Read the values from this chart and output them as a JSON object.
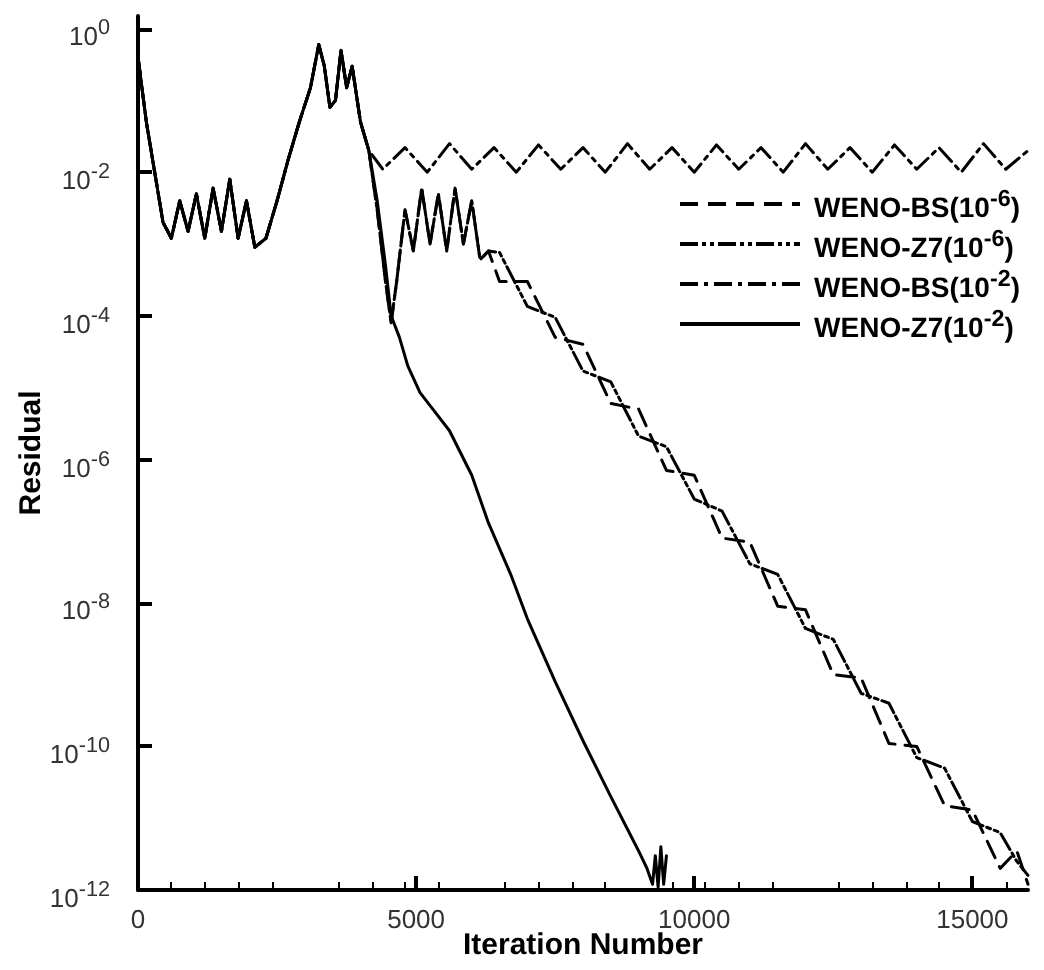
{
  "chart_data": {
    "type": "line",
    "xlabel": "Iteration Number",
    "ylabel": "Residual",
    "log": "y",
    "grid": false,
    "marker": "none",
    "legend": "right",
    "xlim": [
      0,
      16000
    ],
    "xticks": [
      0,
      5000,
      10000,
      15000
    ],
    "ylim": [
      1e-12,
      1.5
    ],
    "yticks": [
      {
        "value": 1,
        "label": "10$^{0}$"
      },
      {
        "value": 0.01,
        "label": "10$^{-2}$"
      },
      {
        "value": 0.0001,
        "label": "10$^{-4}$"
      },
      {
        "value": 1e-06,
        "label": "10$^{-6}$"
      },
      {
        "value": 1e-08,
        "label": "10$^{-8}$"
      },
      {
        "value": 1e-10,
        "label": "10$^{-10}$"
      },
      {
        "value": 1e-12,
        "label": "10$^{-12}$"
      }
    ],
    "series": [
      {
        "name": "WENO-BS(10$^{-6}$)",
        "color": "#000000",
        "line_style": "dashed",
        "x": [
          0,
          150,
          300,
          450,
          600,
          750,
          900,
          1050,
          1200,
          1350,
          1500,
          1650,
          1800,
          1950,
          2100,
          2300,
          2500,
          2700,
          2900,
          3100,
          3250,
          3350,
          3450,
          3550,
          3650,
          3750,
          3850,
          4000,
          4150,
          4300,
          4450,
          4550,
          4650,
          4800,
          4950,
          5100,
          5250,
          5400,
          5550,
          5700,
          5850,
          6000,
          6150,
          6300,
          6500,
          7000,
          7500,
          8000,
          8500,
          9000,
          9500,
          10000,
          10500,
          11000,
          11500,
          12000,
          12500,
          13000,
          13500,
          14000,
          14500,
          15000,
          15500,
          15800,
          16000
        ],
        "values": [
          0.4,
          0.05,
          0.01,
          0.002,
          0.0012,
          0.004,
          0.0015,
          0.005,
          0.0012,
          0.006,
          0.0015,
          0.008,
          0.0012,
          0.004,
          0.0009,
          0.0012,
          0.004,
          0.015,
          0.05,
          0.15,
          0.6,
          0.3,
          0.08,
          0.1,
          0.5,
          0.15,
          0.3,
          0.05,
          0.02,
          0.003,
          0.0003,
          8e-05,
          0.0003,
          0.003,
          0.0008,
          0.006,
          0.001,
          0.005,
          0.0008,
          0.006,
          0.001,
          0.004,
          0.0006,
          0.0008,
          0.0003,
          0.0003,
          5e-05,
          4e-05,
          6e-06,
          5e-06,
          7e-07,
          6e-07,
          8e-08,
          7e-08,
          9e-09,
          8e-09,
          1e-09,
          9e-10,
          1.1e-10,
          1e-10,
          1.5e-11,
          1.3e-11,
          2e-12,
          3.5e-12,
          1.2e-12
        ]
      },
      {
        "name": "WENO-Z7(10$^{-6}$)",
        "color": "#000000",
        "line_style": "dashdotdot",
        "x": [
          0,
          150,
          300,
          450,
          600,
          750,
          900,
          1050,
          1200,
          1350,
          1500,
          1650,
          1800,
          1950,
          2100,
          2300,
          2500,
          2700,
          2900,
          3100,
          3250,
          3350,
          3450,
          3550,
          3650,
          3750,
          3850,
          4000,
          4150,
          4300,
          4450,
          4550,
          4650,
          4800,
          4950,
          5100,
          5250,
          5400,
          5550,
          5700,
          5850,
          6000,
          6150,
          6300,
          6500,
          7000,
          7500,
          8000,
          8500,
          9000,
          9500,
          10000,
          10500,
          11000,
          11500,
          12000,
          12500,
          13000,
          13500,
          14000,
          14500,
          15000,
          15500,
          15800,
          16000
        ],
        "values": [
          0.4,
          0.05,
          0.01,
          0.002,
          0.0012,
          0.004,
          0.0015,
          0.005,
          0.0012,
          0.006,
          0.0015,
          0.008,
          0.0012,
          0.004,
          0.0009,
          0.0012,
          0.004,
          0.015,
          0.05,
          0.15,
          0.6,
          0.3,
          0.08,
          0.1,
          0.5,
          0.15,
          0.3,
          0.05,
          0.02,
          0.003,
          0.0003,
          8e-05,
          0.0003,
          0.003,
          0.0008,
          0.006,
          0.001,
          0.005,
          0.0008,
          0.006,
          0.001,
          0.004,
          0.0006,
          0.0008,
          0.00076,
          0.000135,
          9.5e-05,
          1.7e-05,
          1.2e-05,
          2.1e-06,
          1.5e-06,
          2.8e-07,
          1.9e-07,
          3.5e-08,
          2.5e-08,
          4.4e-09,
          3.1e-09,
          5.5e-10,
          4e-10,
          7e-11,
          5e-11,
          9e-12,
          6.3e-12,
          2.5e-12,
          1.6e-12
        ]
      },
      {
        "name": "WENO-BS(10$^{-2}$)",
        "color": "#000000",
        "line_style": "dashdot",
        "x": [
          0,
          150,
          300,
          450,
          600,
          750,
          900,
          1050,
          1200,
          1350,
          1500,
          1650,
          1800,
          1950,
          2100,
          2300,
          2500,
          2700,
          2900,
          3100,
          3250,
          3350,
          3450,
          3550,
          3650,
          3750,
          3850,
          4000,
          4150,
          4400,
          4800,
          5200,
          5600,
          6000,
          6400,
          6800,
          7200,
          7600,
          8000,
          8400,
          8800,
          9200,
          9600,
          10000,
          10400,
          10800,
          11200,
          11600,
          12000,
          12400,
          12800,
          13200,
          13600,
          14000,
          14400,
          14800,
          15200,
          15600,
          16000
        ],
        "values": [
          0.4,
          0.05,
          0.01,
          0.002,
          0.0012,
          0.004,
          0.0015,
          0.005,
          0.0012,
          0.006,
          0.0015,
          0.008,
          0.0012,
          0.004,
          0.0009,
          0.0012,
          0.004,
          0.015,
          0.05,
          0.15,
          0.6,
          0.3,
          0.08,
          0.1,
          0.5,
          0.15,
          0.3,
          0.05,
          0.02,
          0.011,
          0.022,
          0.01,
          0.025,
          0.011,
          0.022,
          0.01,
          0.024,
          0.011,
          0.022,
          0.01,
          0.025,
          0.011,
          0.022,
          0.01,
          0.024,
          0.011,
          0.022,
          0.01,
          0.025,
          0.011,
          0.022,
          0.01,
          0.024,
          0.011,
          0.022,
          0.01,
          0.025,
          0.011,
          0.02
        ]
      },
      {
        "name": "WENO-Z7(10$^{-2}$)",
        "color": "#000000",
        "line_style": "solid",
        "x": [
          0,
          150,
          300,
          450,
          600,
          750,
          900,
          1050,
          1200,
          1350,
          1500,
          1650,
          1800,
          1950,
          2100,
          2300,
          2500,
          2700,
          2900,
          3100,
          3250,
          3350,
          3450,
          3550,
          3650,
          3750,
          3850,
          4000,
          4150,
          4300,
          4450,
          4550,
          4700,
          4850,
          5070,
          5300,
          5600,
          6000,
          6300,
          6700,
          7000,
          7500,
          8000,
          8500,
          9000,
          9150,
          9250,
          9300,
          9350,
          9400,
          9450,
          9500
        ],
        "values": [
          0.4,
          0.05,
          0.01,
          0.002,
          0.0012,
          0.004,
          0.0015,
          0.005,
          0.0012,
          0.006,
          0.0015,
          0.008,
          0.0012,
          0.004,
          0.0009,
          0.0012,
          0.004,
          0.015,
          0.05,
          0.15,
          0.6,
          0.3,
          0.08,
          0.1,
          0.5,
          0.15,
          0.3,
          0.05,
          0.02,
          0.004,
          0.0005,
          0.0001,
          5e-05,
          2e-05,
          8.5e-06,
          5e-06,
          2.5e-06,
          6e-07,
          1.3e-07,
          2.5e-08,
          6e-09,
          8e-10,
          1.2e-10,
          2e-11,
          3.5e-12,
          2e-12,
          1.2e-12,
          3e-12,
          1.1e-12,
          4e-12,
          1.2e-12,
          3e-12
        ]
      }
    ]
  }
}
